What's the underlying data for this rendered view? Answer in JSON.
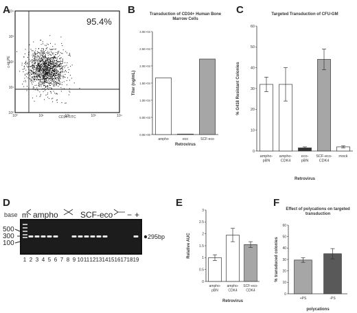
{
  "panels": {
    "A": {
      "letter": "A",
      "percent": "95.4%",
      "xlabel": "CD34 FITC",
      "ylabel": "c-kit PE",
      "x_ticks": [
        "10⁰",
        "10¹",
        "10²",
        "10³",
        "10⁴"
      ],
      "y_ticks": [
        "10⁰",
        "10¹",
        "10²",
        "10³",
        "10⁴"
      ]
    },
    "B": {
      "letter": "B"
    },
    "C": {
      "letter": "C"
    },
    "D": {
      "letter": "D",
      "base_label": "base",
      "m_label": "m",
      "ampho_label": "ampho",
      "scf_label": "SCF-eco",
      "minus_label": "−",
      "plus_label": "+",
      "size_markers": [
        "500",
        "300",
        "100"
      ],
      "band_label": "295bp",
      "lanes": [
        "1",
        "2",
        "3",
        "4",
        "5",
        "6",
        "7",
        "8",
        "9",
        "10",
        "11",
        "12",
        "13",
        "14",
        "15",
        "16",
        "17",
        "18",
        "19"
      ],
      "band_lanes": [
        2,
        3,
        4,
        5,
        6,
        9,
        10,
        11,
        12,
        13,
        14,
        19
      ]
    },
    "E": {
      "letter": "E"
    },
    "F": {
      "letter": "F"
    }
  },
  "chart_data": [
    {
      "panel": "B",
      "type": "bar",
      "title": "Transduction of CD34+ Human Bone Marrow Cells",
      "xlabel": "Retrovirus",
      "ylabel": "Titer (ng/mL)",
      "categories": [
        "ampho",
        "eco",
        "SCF-eco"
      ],
      "values": [
        16500,
        150,
        22000
      ],
      "colors": [
        "#ffffff",
        "#ffffff",
        "#a6a6a6"
      ],
      "ylim": [
        0,
        30000
      ],
      "yticks": [
        0,
        5000,
        10000,
        15000,
        20000,
        25000,
        30000
      ],
      "ytick_labels": [
        "0.0E+00",
        "5.0E+03",
        "1.0E+04",
        "1.5E+04",
        "2.0E+04",
        "2.5E+04",
        "3.0E+04"
      ]
    },
    {
      "panel": "C",
      "type": "bar",
      "title": "Targeted Transduction of CFU-GM",
      "xlabel": "Retrovirus",
      "ylabel": "% G418 Resistant Colonies",
      "categories": [
        "ampho-pBN",
        "ampho-CDK4",
        "eco-pBN",
        "SCF-eco-CDK4",
        "mock"
      ],
      "values": [
        32,
        32,
        1.5,
        44,
        2
      ],
      "errors": [
        3.5,
        8,
        0.5,
        5,
        0.5
      ],
      "colors": [
        "#ffffff",
        "#ffffff",
        "#333333",
        "#a6a6a6",
        "#ffffff"
      ],
      "ylim": [
        0,
        60
      ],
      "yticks": [
        0,
        10,
        20,
        30,
        40,
        50,
        60
      ],
      "ytick_labels": [
        "0",
        "10",
        "20",
        "30",
        "40",
        "50",
        "60"
      ]
    },
    {
      "panel": "E",
      "type": "bar",
      "title": "",
      "xlabel": "Retrovirus",
      "ylabel": "Relative AUC",
      "categories": [
        "ampho-pBN",
        "ampho-CDK4",
        "SCF-eco-CDK4"
      ],
      "values": [
        1.0,
        1.95,
        1.55
      ],
      "errors": [
        0.12,
        0.28,
        0.12
      ],
      "colors": [
        "#ffffff",
        "#ffffff",
        "#a6a6a6"
      ],
      "ylim": [
        0,
        3
      ],
      "yticks": [
        0,
        0.5,
        1,
        1.5,
        2,
        2.5,
        3
      ],
      "ytick_labels": [
        "0",
        "0.5",
        "1",
        "1.5",
        "2",
        "2.5",
        "3"
      ]
    },
    {
      "panel": "F",
      "type": "bar",
      "title": "Effect of polycations on targeted transduction",
      "xlabel": "polycations",
      "ylabel": "% transduced colonies",
      "categories": [
        "+PS",
        "-PS"
      ],
      "values": [
        29.5,
        35
      ],
      "errors": [
        2,
        4.5
      ],
      "colors": [
        "#a6a6a6",
        "#595959"
      ],
      "ylim": [
        0,
        60
      ],
      "yticks": [
        0,
        10,
        20,
        30,
        40,
        50,
        60
      ],
      "ytick_labels": [
        "0",
        "10",
        "20",
        "30",
        "40",
        "50",
        "60"
      ]
    }
  ]
}
